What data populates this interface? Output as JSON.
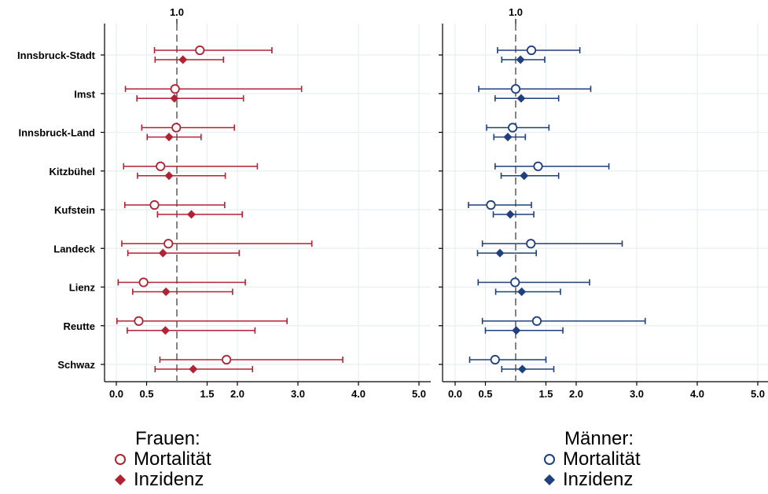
{
  "chart_data": [
    {
      "type": "scatter",
      "title": "",
      "reference_line": 1.0,
      "reference_label": "1.0",
      "xlim": [
        0,
        5
      ],
      "xticks": [
        0.0,
        0.5,
        1.5,
        2.0,
        3.0,
        4.0,
        5.0
      ],
      "xtick_labels": [
        "0.0",
        "0.5",
        "1.5",
        "2.0",
        "3.0",
        "4.0",
        "5.0"
      ],
      "categories": [
        "Innsbruck-Stadt",
        "Imst",
        "Innsbruck-Land",
        "Kitzbühel",
        "Kufstein",
        "Landeck",
        "Lienz",
        "Reutte",
        "Schwaz"
      ],
      "color": "#b22234",
      "series": [
        {
          "name": "Mortalität",
          "marker": "circle-hollow",
          "values": [
            1.38,
            0.97,
            0.99,
            0.73,
            0.63,
            0.86,
            0.45,
            0.37,
            1.82
          ],
          "lower": [
            0.63,
            0.15,
            0.42,
            0.12,
            0.14,
            0.09,
            0.03,
            0.01,
            0.72
          ],
          "upper": [
            2.57,
            3.06,
            1.95,
            2.33,
            1.79,
            3.23,
            2.13,
            2.82,
            3.74
          ]
        },
        {
          "name": "Inzidenz",
          "marker": "diamond-filled",
          "values": [
            1.1,
            0.96,
            0.87,
            0.87,
            1.24,
            0.77,
            0.82,
            0.81,
            1.27
          ],
          "lower": [
            0.64,
            0.34,
            0.51,
            0.35,
            0.68,
            0.19,
            0.27,
            0.18,
            0.64
          ],
          "upper": [
            1.77,
            2.1,
            1.4,
            1.8,
            2.08,
            2.03,
            1.92,
            2.29,
            2.25
          ]
        }
      ]
    },
    {
      "type": "scatter",
      "title": "",
      "reference_line": 1.0,
      "reference_label": "1.0",
      "xlim": [
        0,
        5
      ],
      "xticks": [
        0.0,
        0.5,
        1.5,
        2.0,
        3.0,
        4.0,
        5.0
      ],
      "xtick_labels": [
        "0.0",
        "0.5",
        "1.5",
        "2.0",
        "3.0",
        "4.0",
        "5.0"
      ],
      "categories": [
        "Innsbruck-Stadt",
        "Imst",
        "Innsbruck-Land",
        "Kitzbühel",
        "Kufstein",
        "Landeck",
        "Lienz",
        "Reutte",
        "Schwaz"
      ],
      "color": "#1f3f7f",
      "series": [
        {
          "name": "Mortalität",
          "marker": "circle-hollow",
          "values": [
            1.26,
            1.0,
            0.95,
            1.37,
            0.59,
            1.25,
            0.99,
            1.35,
            0.66
          ],
          "lower": [
            0.7,
            0.39,
            0.52,
            0.66,
            0.22,
            0.45,
            0.38,
            0.45,
            0.24
          ],
          "upper": [
            2.06,
            2.24,
            1.55,
            2.54,
            1.26,
            2.76,
            2.22,
            3.14,
            1.5
          ]
        },
        {
          "name": "Inzidenz",
          "marker": "diamond-filled",
          "values": [
            1.08,
            1.09,
            0.87,
            1.14,
            0.91,
            0.74,
            1.1,
            1.01,
            1.11
          ],
          "lower": [
            0.77,
            0.66,
            0.64,
            0.76,
            0.63,
            0.37,
            0.67,
            0.5,
            0.77
          ],
          "upper": [
            1.48,
            1.71,
            1.16,
            1.71,
            1.3,
            1.34,
            1.74,
            1.78,
            1.63
          ]
        }
      ]
    }
  ],
  "legend": {
    "women_title": "Frauen:",
    "men_title": "Männer:",
    "mortality_label": "Mortalität",
    "incidence_label": "Inzidenz"
  }
}
